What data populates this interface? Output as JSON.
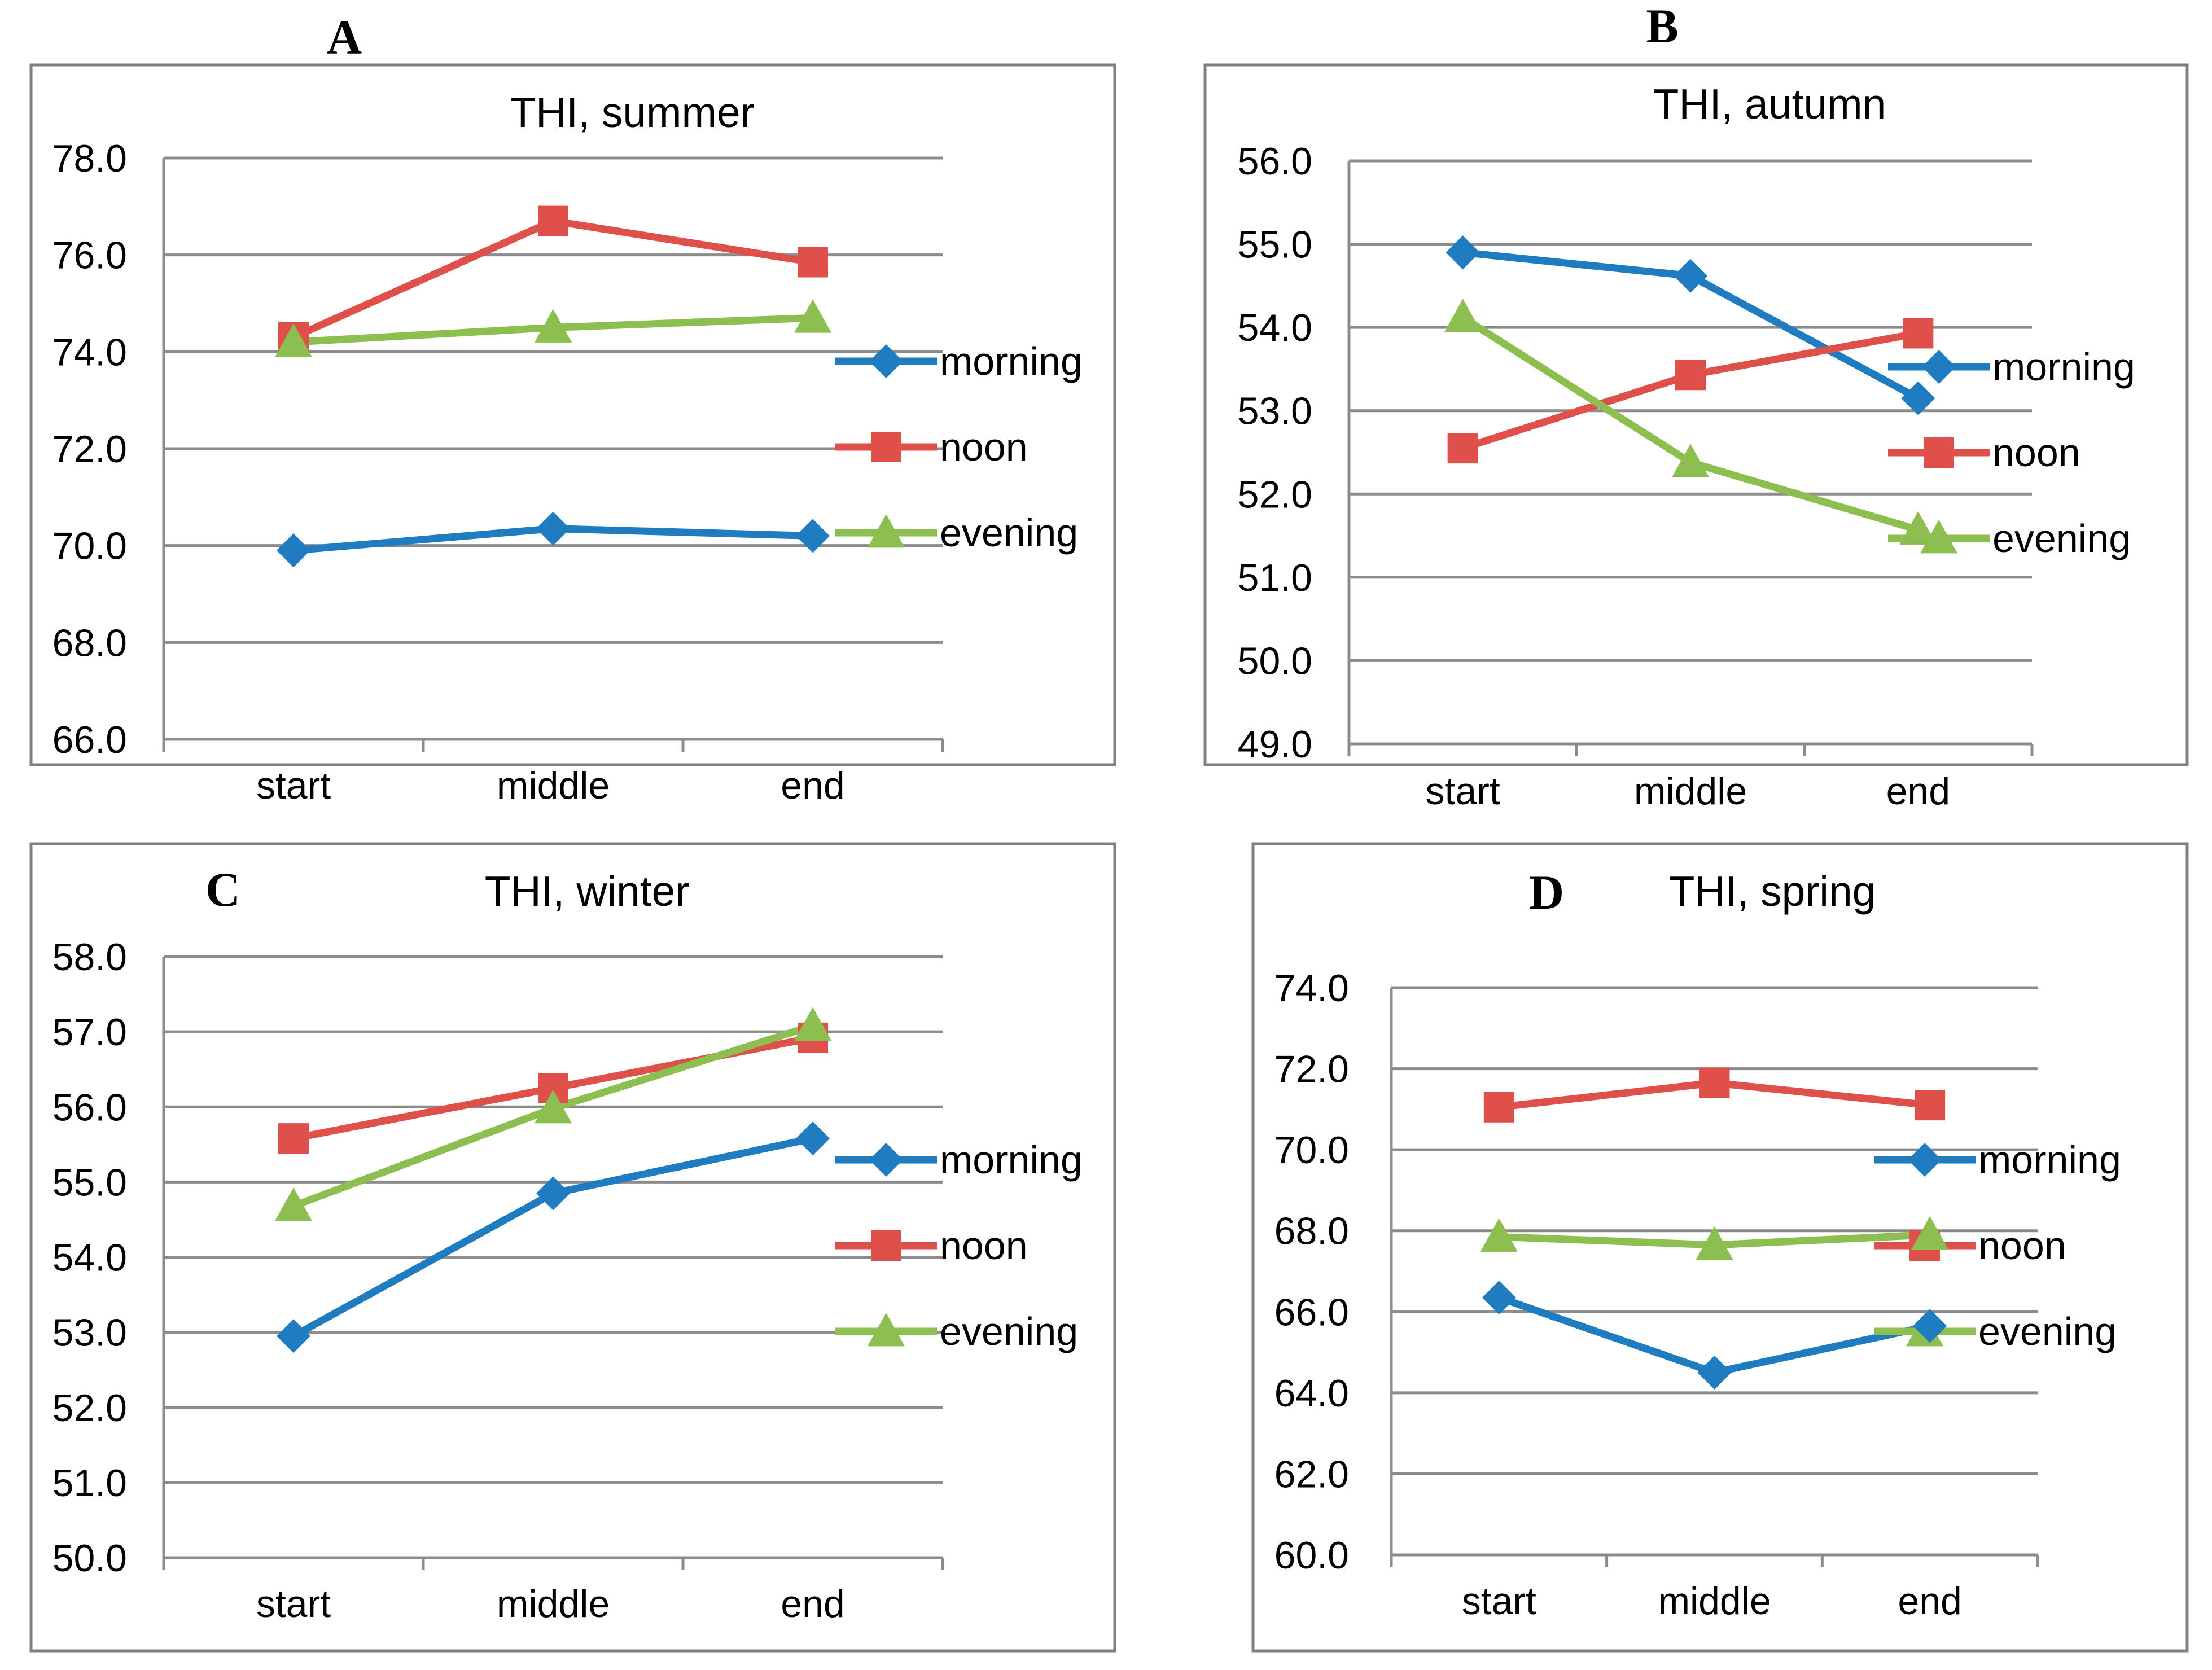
{
  "chart_data": [
    {
      "type": "line",
      "panel": "A",
      "title": "THI, summer",
      "categories": [
        "start",
        "middle",
        "end"
      ],
      "ylim": [
        66,
        78
      ],
      "yticks": [
        "66.0",
        "68.0",
        "70.0",
        "72.0",
        "74.0",
        "76.0",
        "78.0"
      ],
      "series": [
        {
          "name": "morning",
          "color": "#1F7CC0",
          "marker": "diamond",
          "values": [
            69.9,
            70.35,
            70.2
          ]
        },
        {
          "name": "noon",
          "color": "#E0504A",
          "marker": "square",
          "values": [
            74.3,
            76.7,
            75.85
          ]
        },
        {
          "name": "evening",
          "color": "#8CBF4F",
          "marker": "triangle",
          "values": [
            74.2,
            74.5,
            74.7
          ]
        }
      ]
    },
    {
      "type": "line",
      "panel": "B",
      "title": "THI, autumn",
      "categories": [
        "start",
        "middle",
        "end"
      ],
      "ylim": [
        49,
        56
      ],
      "yticks": [
        "49.0",
        "50.0",
        "51.0",
        "52.0",
        "53.0",
        "54.0",
        "55.0",
        "56.0"
      ],
      "series": [
        {
          "name": "morning",
          "color": "#1F7CC0",
          "marker": "diamond",
          "values": [
            54.9,
            54.62,
            53.15
          ]
        },
        {
          "name": "noon",
          "color": "#E0504A",
          "marker": "square",
          "values": [
            52.55,
            53.43,
            53.93
          ]
        },
        {
          "name": "evening",
          "color": "#8CBF4F",
          "marker": "triangle",
          "values": [
            54.12,
            52.38,
            51.57
          ]
        }
      ]
    },
    {
      "type": "line",
      "panel": "C",
      "title": "THI, winter",
      "categories": [
        "start",
        "middle",
        "end"
      ],
      "ylim": [
        50,
        58
      ],
      "yticks": [
        "50.0",
        "51.0",
        "52.0",
        "53.0",
        "54.0",
        "55.0",
        "56.0",
        "57.0",
        "58.0"
      ],
      "series": [
        {
          "name": "morning",
          "color": "#1F7CC0",
          "marker": "diamond",
          "values": [
            52.95,
            54.85,
            55.58
          ]
        },
        {
          "name": "noon",
          "color": "#E0504A",
          "marker": "square",
          "values": [
            55.58,
            56.25,
            56.92
          ]
        },
        {
          "name": "evening",
          "color": "#8CBF4F",
          "marker": "triangle",
          "values": [
            54.68,
            55.98,
            57.08
          ]
        }
      ]
    },
    {
      "type": "line",
      "panel": "D",
      "title": "THI, spring",
      "categories": [
        "start",
        "middle",
        "end"
      ],
      "ylim": [
        60,
        74
      ],
      "yticks": [
        "60.0",
        "62.0",
        "64.0",
        "66.0",
        "68.0",
        "70.0",
        "72.0",
        "74.0"
      ],
      "series": [
        {
          "name": "morning",
          "color": "#1F7CC0",
          "marker": "diamond",
          "values": [
            66.35,
            64.5,
            65.65
          ]
        },
        {
          "name": "noon",
          "color": "#E0504A",
          "marker": "square",
          "values": [
            71.05,
            71.65,
            71.1
          ]
        },
        {
          "name": "evening",
          "color": "#8CBF4F",
          "marker": "triangle",
          "values": [
            67.85,
            67.65,
            67.9
          ]
        }
      ]
    }
  ]
}
